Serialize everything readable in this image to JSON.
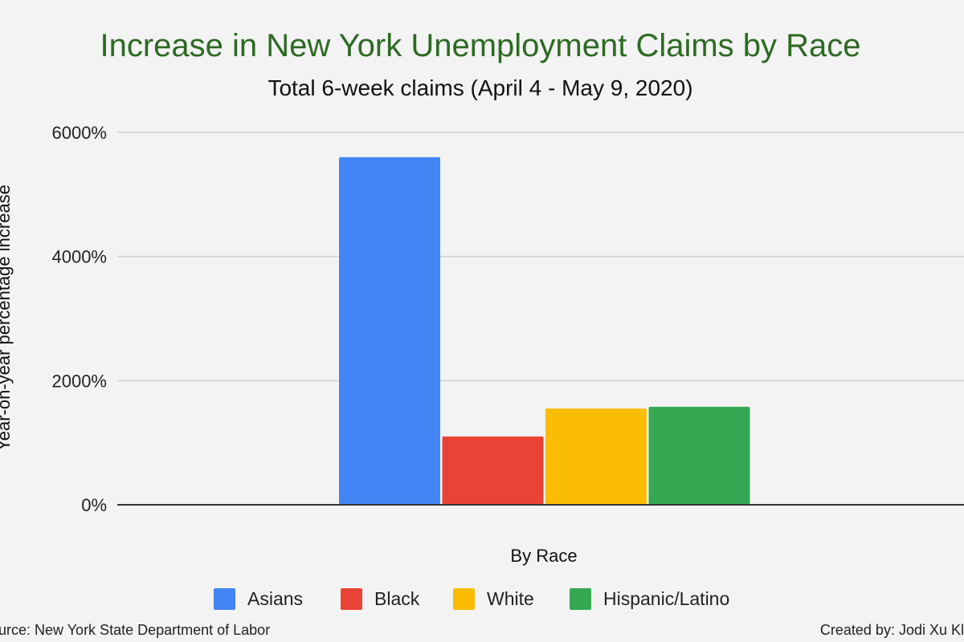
{
  "chart_data": {
    "type": "bar",
    "title": "Increase in New York Unemployment Claims by Race",
    "subtitle": "Total 6-week claims (April 4 - May 9, 2020)",
    "xlabel": "By Race",
    "ylabel": "Year-on-year percentage increase",
    "ylim": [
      0,
      6000
    ],
    "y_ticks": [
      "0%",
      "2000%",
      "4000%",
      "6000%"
    ],
    "y_tick_values": [
      0,
      2000,
      4000,
      6000
    ],
    "grid": true,
    "legend_position": "bottom",
    "categories": [
      "By Race"
    ],
    "series": [
      {
        "name": "Asians",
        "values": [
          5600
        ],
        "color": "#4285f4"
      },
      {
        "name": "Black",
        "values": [
          1100
        ],
        "color": "#ea4335"
      },
      {
        "name": "White",
        "values": [
          1550
        ],
        "color": "#fbbc04"
      },
      {
        "name": "Hispanic/Latino",
        "values": [
          1580
        ],
        "color": "#34a853"
      }
    ]
  },
  "footer": {
    "source": "urce: New York State Department of Labor",
    "credit": "Created by: Jodi Xu Kl"
  }
}
